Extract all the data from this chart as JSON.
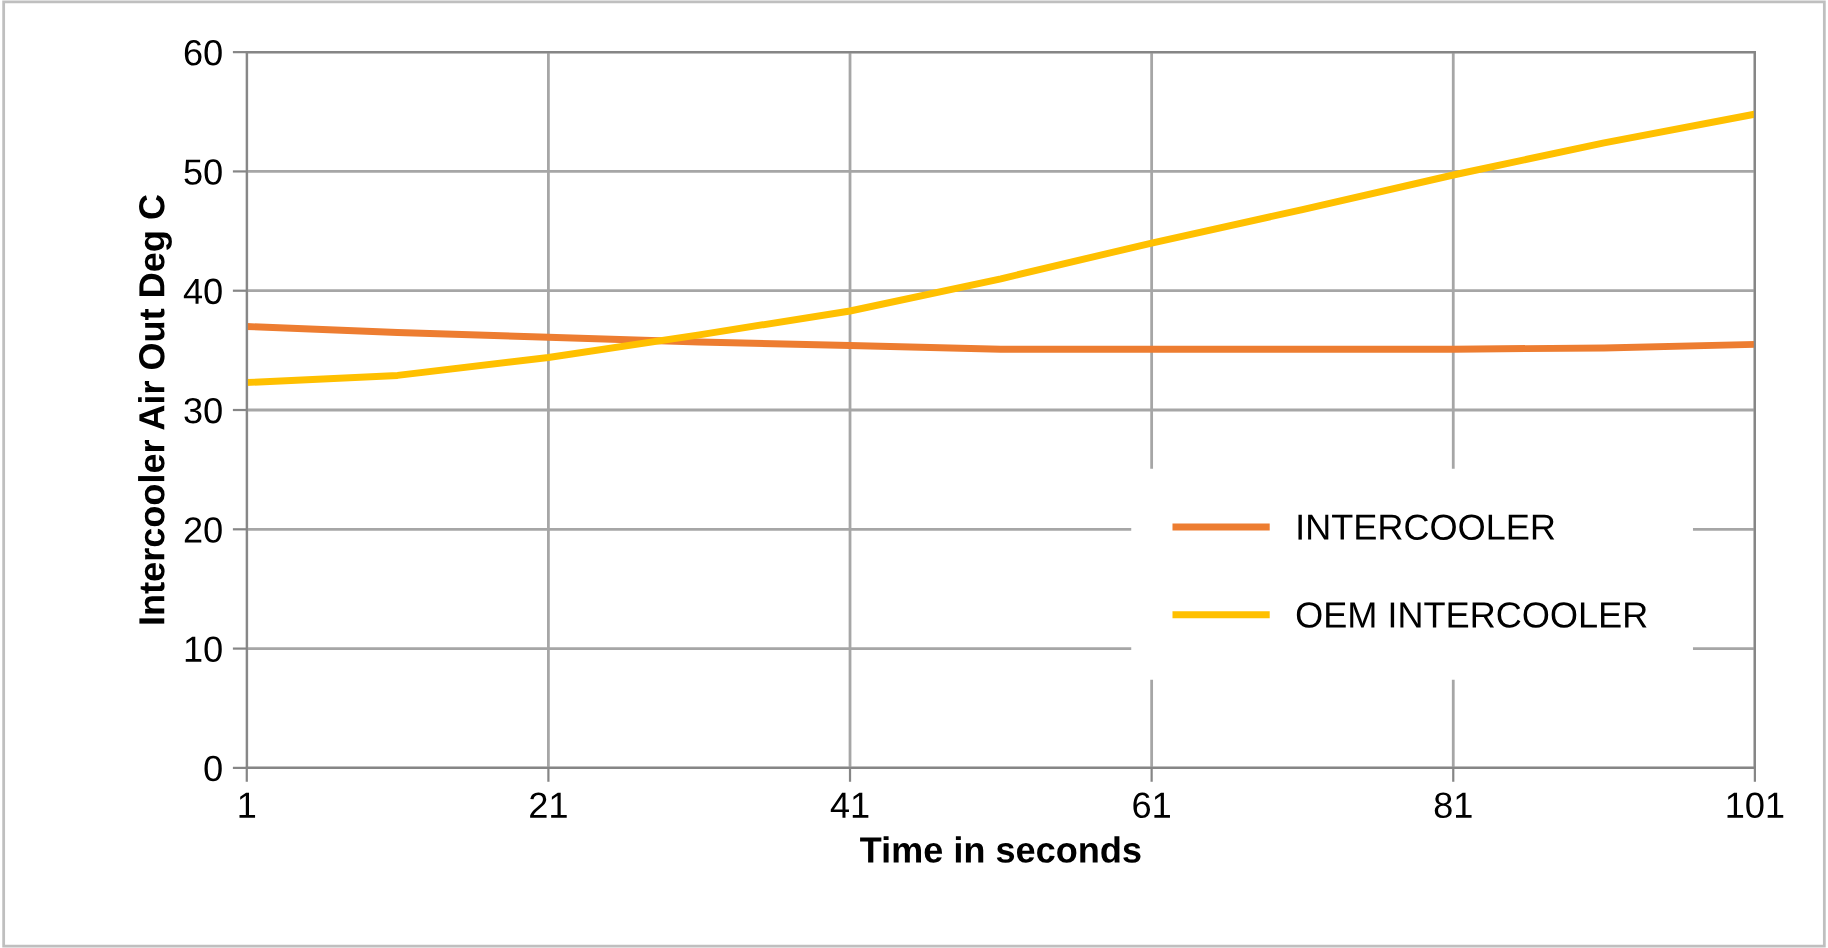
{
  "chart_data": {
    "type": "line",
    "xlabel": "Time in seconds",
    "ylabel": "Intercooler Air Out Deg C",
    "x": [
      1,
      11,
      21,
      31,
      41,
      51,
      61,
      71,
      81,
      91,
      101
    ],
    "series": [
      {
        "name": "INTERCOOLER",
        "color": "#ed7d31",
        "values": [
          37,
          36.5,
          36.1,
          35.7,
          35.4,
          35.1,
          35.1,
          35.1,
          35.1,
          35.2,
          35.5
        ]
      },
      {
        "name": "OEM INTERCOOLER",
        "color": "#ffc000",
        "values": [
          32.3,
          32.9,
          34.4,
          36.3,
          38.3,
          41,
          44,
          46.8,
          49.7,
          52.4,
          54.8
        ]
      }
    ],
    "xlim": [
      1,
      101
    ],
    "xticks": [
      1,
      21,
      41,
      61,
      81,
      101
    ],
    "ylim": [
      0,
      60
    ],
    "yticks": [
      0,
      10,
      20,
      30,
      40,
      50,
      60
    ],
    "grid": true,
    "legend": "bottom right",
    "marker": "none",
    "line_style": "solid"
  }
}
